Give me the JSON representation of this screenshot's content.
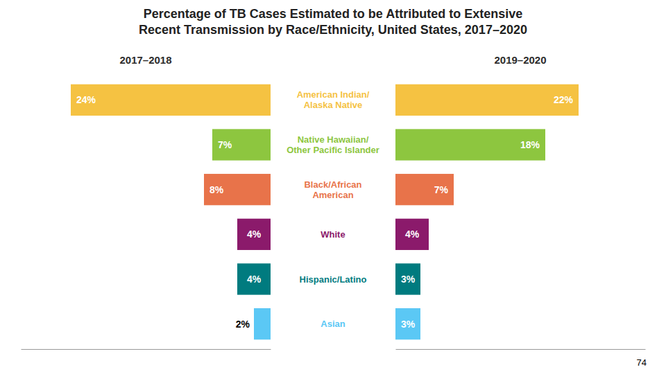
{
  "chart_data": {
    "type": "bar",
    "orientation": "horizontal",
    "title": "Percentage of TB Cases Estimated to be Attributed to Extensive\nRecent Transmission by Race/Ethnicity, United States, 2017–2020",
    "categories": [
      "American Indian/\nAlaska Native",
      "Native Hawaiian/\nOther Pacific Islander",
      "Black/African\nAmerican",
      "White",
      "Hispanic/Latino",
      "Asian"
    ],
    "colors": [
      "#F5C242",
      "#8DC63F",
      "#E8734A",
      "#8B1A6B",
      "#007B7F",
      "#5BC8F5"
    ],
    "series": [
      {
        "name": "2017–2018",
        "values": [
          24,
          7,
          8,
          4,
          4,
          2
        ],
        "value_labels": [
          "24%",
          "7%",
          "8%",
          "4%",
          "4%",
          "2%"
        ]
      },
      {
        "name": "2019–2020",
        "values": [
          22,
          18,
          7,
          4,
          3,
          3
        ],
        "value_labels": [
          "22%",
          "18%",
          "7%",
          "4%",
          "3%",
          "3%"
        ]
      }
    ],
    "xlim": [
      0,
      30
    ],
    "data_labels": true,
    "tick_labels": false,
    "grid": false,
    "annotations": [
      "74"
    ]
  }
}
